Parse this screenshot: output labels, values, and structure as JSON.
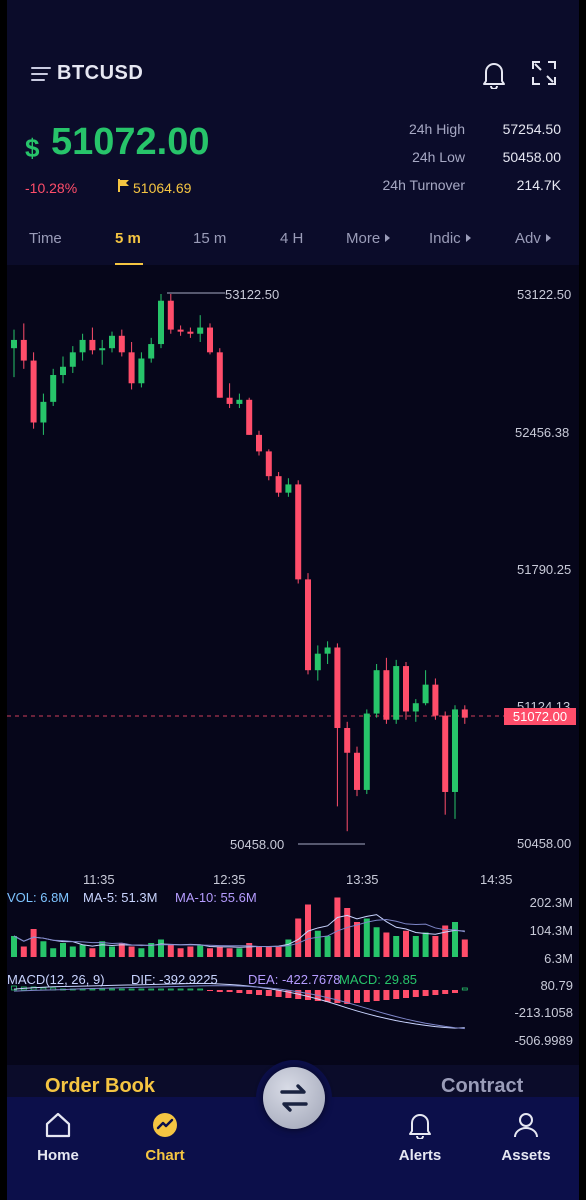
{
  "header": {
    "symbol": "BTCUSD",
    "currency_symbol": "$",
    "last_price": "51072.00",
    "change_pct": "-10.28%",
    "mark_price": "51064.69",
    "stats": [
      {
        "label": "24h High",
        "value": "57254.50"
      },
      {
        "label": "24h Low",
        "value": "50458.00"
      },
      {
        "label": "24h Turnover",
        "value": "214.7K"
      }
    ]
  },
  "tabs": [
    {
      "label": "Time",
      "active": false
    },
    {
      "label": "5 m",
      "active": true
    },
    {
      "label": "15 m",
      "active": false
    },
    {
      "label": "4 H",
      "active": false
    },
    {
      "label": "More",
      "active": false
    },
    {
      "label": "Indic",
      "active": false
    },
    {
      "label": "Adv",
      "active": false
    }
  ],
  "chart": {
    "price_axis": [
      "53122.50",
      "52456.38",
      "51790.25",
      "51124.13",
      "50458.00"
    ],
    "high_label": "53122.50",
    "low_label": "50458.00",
    "current_tag": "51072.00",
    "time_axis": [
      "11:35",
      "12:35",
      "13:35",
      "14:35"
    ],
    "volume": {
      "vol": "VOL: 6.8M",
      "ma5": "MA-5: 51.3M",
      "ma10": "MA-10: 55.6M",
      "axis": [
        "202.3M",
        "104.3M",
        "6.3M"
      ]
    },
    "macd": {
      "title": "MACD(12, 26, 9)",
      "dif": "DIF: -392.9225",
      "dea": "DEA: -422.7678",
      "macd": "MACD: 29.85",
      "axis": [
        "80.79",
        "-213.1058",
        "-506.9989"
      ]
    }
  },
  "sections": {
    "order_book": "Order Book",
    "contract": "Contract"
  },
  "nav": [
    {
      "label": "Home",
      "icon": "home-icon"
    },
    {
      "label": "Chart",
      "icon": "chart-icon",
      "active": true
    },
    {
      "label": "Alerts",
      "icon": "bell-icon"
    },
    {
      "label": "Assets",
      "icon": "user-icon"
    }
  ],
  "colors": {
    "up": "#27c46a",
    "down": "#ff4d6a",
    "accent": "#f5c542",
    "nav_bg": "#0c0f4a"
  },
  "chart_data": {
    "type": "candlestick",
    "y_range": [
      50458.0,
      53122.5
    ],
    "candles": [
      [
        52860,
        52950,
        52720,
        52900
      ],
      [
        52900,
        52980,
        52760,
        52800
      ],
      [
        52800,
        52840,
        52470,
        52500
      ],
      [
        52500,
        52640,
        52440,
        52600
      ],
      [
        52600,
        52760,
        52580,
        52730
      ],
      [
        52730,
        52820,
        52690,
        52770
      ],
      [
        52770,
        52870,
        52740,
        52840
      ],
      [
        52840,
        52930,
        52800,
        52900
      ],
      [
        52900,
        52960,
        52830,
        52850
      ],
      [
        52850,
        52900,
        52780,
        52860
      ],
      [
        52860,
        52940,
        52840,
        52920
      ],
      [
        52920,
        52950,
        52820,
        52840
      ],
      [
        52840,
        52890,
        52660,
        52690
      ],
      [
        52690,
        52840,
        52670,
        52810
      ],
      [
        52810,
        52910,
        52790,
        52880
      ],
      [
        52880,
        53122.5,
        52860,
        53090
      ],
      [
        53090,
        53122.5,
        52930,
        52950
      ],
      [
        52950,
        52970,
        52920,
        52940
      ],
      [
        52940,
        52960,
        52910,
        52930
      ],
      [
        52930,
        53020,
        52890,
        52960
      ],
      [
        52960,
        52980,
        52830,
        52840
      ],
      [
        52840,
        52860,
        52620,
        52620
      ],
      [
        52620,
        52690,
        52570,
        52590
      ],
      [
        52590,
        52640,
        52570,
        52610
      ],
      [
        52610,
        52620,
        52440,
        52440
      ],
      [
        52440,
        52460,
        52340,
        52360
      ],
      [
        52360,
        52370,
        52220,
        52240
      ],
      [
        52240,
        52260,
        52140,
        52160
      ],
      [
        52160,
        52230,
        52140,
        52200
      ],
      [
        52200,
        52220,
        51720,
        51740
      ],
      [
        51740,
        51770,
        51280,
        51300
      ],
      [
        51300,
        51420,
        51250,
        51380
      ],
      [
        51380,
        51440,
        51330,
        51410
      ],
      [
        51410,
        51430,
        50640,
        51020
      ],
      [
        51020,
        51050,
        50520,
        50900
      ],
      [
        50900,
        50930,
        50690,
        50720
      ],
      [
        50720,
        51110,
        50700,
        51090
      ],
      [
        51090,
        51330,
        51070,
        51300
      ],
      [
        51300,
        51360,
        51040,
        51060
      ],
      [
        51060,
        51350,
        51040,
        51320
      ],
      [
        51320,
        51340,
        51060,
        51100
      ],
      [
        51100,
        51160,
        51050,
        51140
      ],
      [
        51140,
        51300,
        51130,
        51230
      ],
      [
        51230,
        51260,
        51060,
        51080
      ],
      [
        51080,
        51100,
        50600,
        50710
      ],
      [
        50710,
        51130,
        50580,
        51110
      ],
      [
        51110,
        51130,
        51040,
        51070
      ]
    ],
    "volume": [
      12,
      6,
      16,
      9,
      5,
      8,
      6,
      7,
      5,
      9,
      6,
      8,
      6,
      5,
      8,
      10,
      7,
      5,
      6,
      7,
      5,
      6,
      5,
      5,
      8,
      6,
      6,
      6,
      10,
      22,
      30,
      15,
      12,
      34,
      28,
      20,
      22,
      17,
      14,
      12,
      15,
      12,
      14,
      12,
      18,
      20,
      10
    ],
    "macd_hist": [
      4,
      3,
      3,
      2,
      2,
      1,
      1,
      1,
      1,
      1,
      1,
      1,
      1,
      1,
      1,
      1,
      1,
      1,
      1,
      1,
      -1,
      -2,
      -2,
      -3,
      -4,
      -5,
      -6,
      -7,
      -8,
      -9,
      -10,
      -11,
      -12,
      -13,
      -14,
      -13,
      -12,
      -11,
      -10,
      -9,
      -8,
      -7,
      -6,
      -5,
      -4,
      -3,
      2
    ]
  }
}
